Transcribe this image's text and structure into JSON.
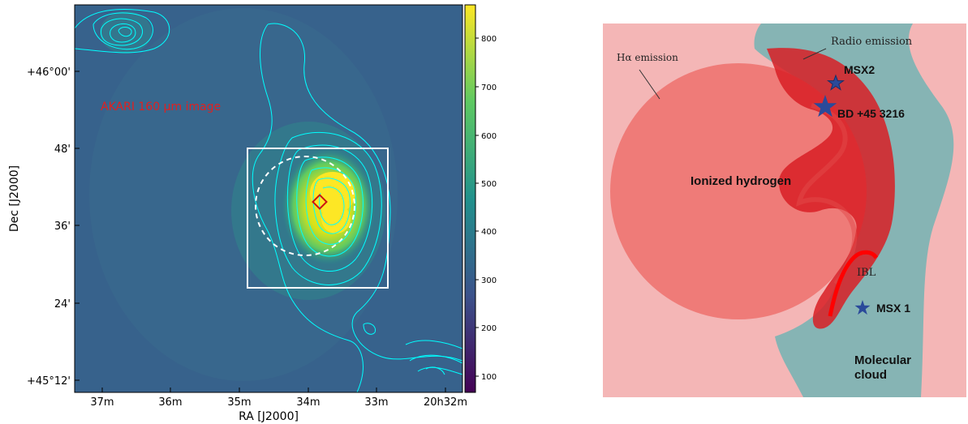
{
  "left_panel": {
    "image_label": "AKARI 160 μm image",
    "xlabel": "RA [J2000]",
    "ylabel": "Dec [J2000]",
    "ra_ticks": [
      "37m",
      "36m",
      "35m",
      "34m",
      "33m",
      "20h32m"
    ],
    "dec_ticks": [
      "+46°00'",
      "48'",
      "36'",
      "24'",
      "+45°12'"
    ],
    "colorbar_ticks": [
      "800",
      "700",
      "600",
      "500",
      "400",
      "300",
      "200",
      "100"
    ],
    "colormap": [
      "#440154",
      "#3b528b",
      "#21918c",
      "#5ec962",
      "#fde725"
    ],
    "contour_color": "#00ffff",
    "marker_colors": {
      "box": "#ffffff",
      "circle": "#ffffff",
      "diamond": "#cc1111",
      "label": "#e02020"
    }
  },
  "right_panel": {
    "labels": {
      "radio_emission": "Radio emission",
      "ha_emission": "Hα emission",
      "msx2": "MSX2",
      "bd": "BD +45 3216",
      "ionized": "Ionized hydrogen",
      "ibl": "IBL",
      "msx1": "MSX 1",
      "molecular_1": "Molecular",
      "molecular_2": "cloud"
    },
    "colors": {
      "background": "#f4b6b6",
      "molecular_cloud": "#86b4b4",
      "ionized_region": "#ef7b78",
      "radio": "#d81f24",
      "ibl": "#ff0000",
      "stars": "#2a4a9a"
    }
  }
}
